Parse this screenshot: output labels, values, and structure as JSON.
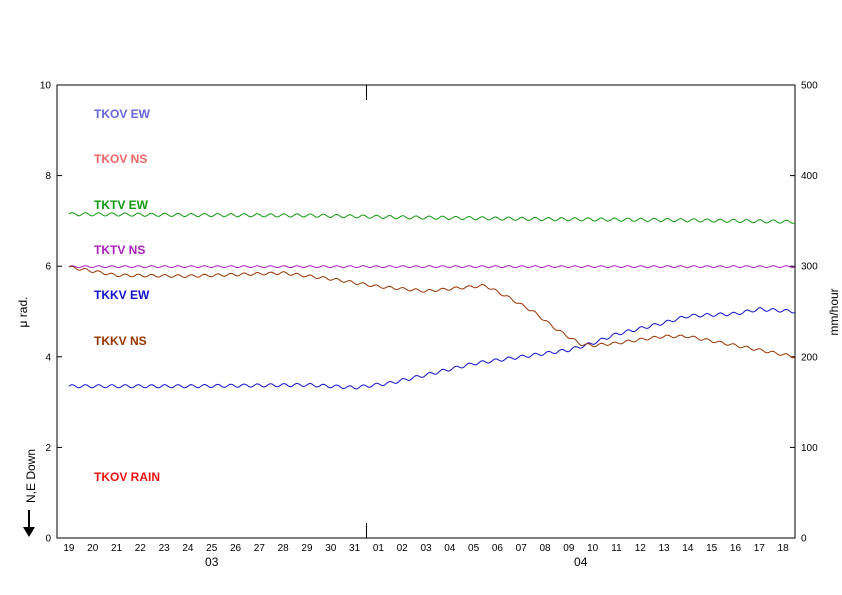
{
  "chart_data": {
    "type": "line",
    "y_left_label": "μ rad.",
    "y_right_label": "mm/hour",
    "direction_note": "N,E Down",
    "y_left_range": [
      0,
      10
    ],
    "y_left_ticks": [
      "0",
      "2",
      "4",
      "6",
      "8",
      "10"
    ],
    "y_right_range": [
      0,
      500
    ],
    "y_right_ticks": [
      "0",
      "100",
      "200",
      "300",
      "400",
      "500"
    ],
    "x_day_labels": [
      "19",
      "20",
      "21",
      "22",
      "23",
      "24",
      "25",
      "26",
      "27",
      "28",
      "29",
      "30",
      "31",
      "01",
      "02",
      "03",
      "04",
      "05",
      "06",
      "07",
      "08",
      "09",
      "10",
      "11",
      "12",
      "13",
      "14",
      "15",
      "16",
      "17",
      "18"
    ],
    "x_month_labels": [
      {
        "label": "03",
        "day_index": 6
      },
      {
        "label": "04",
        "day_index": 21.5
      }
    ],
    "grid": false,
    "legend": [
      {
        "name": "TKOV EW",
        "color": "#6666dd"
      },
      {
        "name": "TKOV NS",
        "color": "#f06666"
      },
      {
        "name": "TKTV EW",
        "color": "#119911"
      },
      {
        "name": "TKTV NS",
        "color": "#aa22bb"
      },
      {
        "name": "TKKV EW",
        "color": "#1111cc"
      },
      {
        "name": "TKKV NS",
        "color": "#993300"
      },
      {
        "name": "TKOV RAIN",
        "color": "#ee1111"
      }
    ],
    "series": [
      {
        "name": "TKTV EW",
        "color": "#119911",
        "wiggle": 0.035,
        "x": [
          0,
          5,
          10,
          14,
          20,
          25,
          28,
          30.5
        ],
        "y": [
          7.15,
          7.13,
          7.12,
          7.08,
          7.04,
          7.02,
          7.0,
          6.98
        ]
      },
      {
        "name": "TKTV NS",
        "color": "#aa22bb",
        "wiggle": 0.02,
        "x": [
          0,
          10,
          20,
          30.5
        ],
        "y": [
          5.99,
          5.99,
          5.99,
          5.99
        ]
      },
      {
        "name": "TKKV EW",
        "color": "#1111cc",
        "wiggle": 0.035,
        "x": [
          0,
          5,
          10,
          12,
          13.5,
          15,
          17,
          19,
          21,
          22,
          23,
          25,
          26,
          28,
          29,
          30.5
        ],
        "y": [
          3.35,
          3.35,
          3.38,
          3.32,
          3.42,
          3.6,
          3.85,
          4.0,
          4.15,
          4.3,
          4.5,
          4.75,
          4.9,
          4.95,
          5.05,
          5.0
        ]
      },
      {
        "name": "TKKV NS",
        "color": "#993300",
        "wiggle": 0.03,
        "x": [
          0,
          2,
          5,
          9,
          11,
          13,
          15,
          17,
          17.5,
          18.5,
          19.5,
          20.5,
          21.5,
          22,
          23,
          24,
          25,
          26,
          27,
          28,
          29,
          30,
          30.5
        ],
        "y": [
          5.98,
          5.8,
          5.78,
          5.85,
          5.72,
          5.55,
          5.45,
          5.55,
          5.57,
          5.3,
          5.0,
          4.6,
          4.28,
          4.25,
          4.3,
          4.38,
          4.45,
          4.45,
          4.35,
          4.25,
          4.15,
          4.05,
          4.0
        ]
      }
    ]
  }
}
